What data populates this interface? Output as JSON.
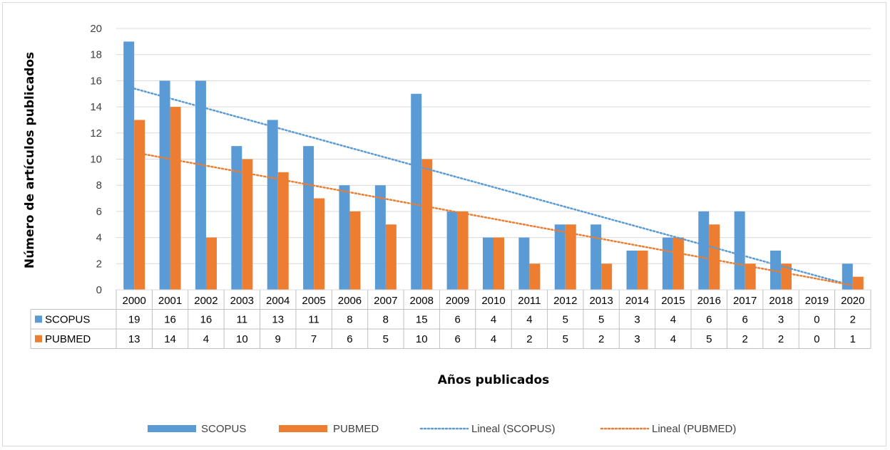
{
  "chart_data": {
    "type": "bar",
    "categories": [
      "2000",
      "2001",
      "2002",
      "2003",
      "2004",
      "2005",
      "2006",
      "2007",
      "2008",
      "2009",
      "2010",
      "2011",
      "2012",
      "2013",
      "2014",
      "2015",
      "2016",
      "2017",
      "2018",
      "2019",
      "2020"
    ],
    "series": [
      {
        "name": "SCOPUS",
        "color": "#5b9bd5",
        "values": [
          19,
          16,
          16,
          11,
          13,
          11,
          8,
          8,
          15,
          6,
          4,
          4,
          5,
          5,
          3,
          4,
          6,
          6,
          3,
          0,
          2
        ]
      },
      {
        "name": "PUBMED",
        "color": "#ed7d31",
        "values": [
          13,
          14,
          4,
          10,
          9,
          7,
          6,
          5,
          10,
          6,
          4,
          2,
          5,
          2,
          3,
          4,
          5,
          2,
          2,
          0,
          1
        ]
      }
    ],
    "trendlines": [
      {
        "name": "Lineal (SCOPUS)",
        "series": "SCOPUS",
        "type": "linear",
        "color": "#5b9bd5",
        "style": "dotted"
      },
      {
        "name": "Lineal (PUBMED)",
        "series": "PUBMED",
        "type": "linear",
        "color": "#ed7d31",
        "style": "dotted"
      }
    ],
    "xlabel": "Años publicados",
    "ylabel": "Número de artículos publicados",
    "ylim": [
      0,
      20
    ],
    "yticks": [
      "0",
      "2",
      "4",
      "6",
      "8",
      "10",
      "12",
      "14",
      "16",
      "18",
      "20"
    ],
    "grid": true,
    "data_table": true,
    "legend_position": "bottom"
  }
}
